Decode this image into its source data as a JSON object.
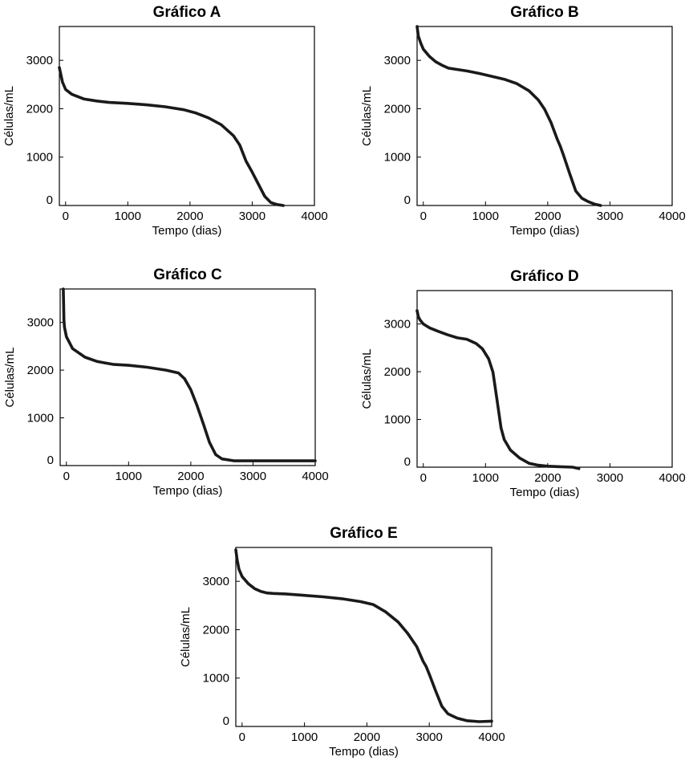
{
  "chart_data": [
    {
      "type": "line",
      "title": "Gráfico A",
      "xlabel": "Tempo (dias)",
      "ylabel": "Células/mL",
      "xlim": [
        -100,
        4000
      ],
      "ylim": [
        0,
        3700
      ],
      "xticks": [
        "0",
        "1000",
        "2000",
        "3000",
        "4000"
      ],
      "yticks": [
        "0",
        "1000",
        "2000",
        "3000"
      ],
      "grid": false,
      "series": [
        {
          "x": [
            -100,
            -50,
            0,
            100,
            300,
            500,
            700,
            1000,
            1300,
            1600,
            1900,
            2100,
            2300,
            2500,
            2700,
            2800,
            2900,
            3000,
            3100,
            3200,
            3300,
            3400,
            3500
          ],
          "y": [
            2850,
            2550,
            2400,
            2300,
            2200,
            2160,
            2130,
            2110,
            2080,
            2040,
            1980,
            1910,
            1810,
            1670,
            1440,
            1250,
            920,
            690,
            440,
            190,
            60,
            20,
            0
          ]
        }
      ]
    },
    {
      "type": "line",
      "title": "Gráfico B",
      "xlabel": "Tempo (dias)",
      "ylabel": "Células/mL",
      "xlim": [
        -100,
        4000
      ],
      "ylim": [
        0,
        3700
      ],
      "xticks": [
        "0",
        "1000",
        "2000",
        "3000",
        "4000"
      ],
      "yticks": [
        "0",
        "1000",
        "2000",
        "3000"
      ],
      "grid": false,
      "series": [
        {
          "x": [
            -100,
            -80,
            -40,
            0,
            100,
            200,
            300,
            400,
            550,
            700,
            900,
            1100,
            1300,
            1500,
            1700,
            1850,
            1950,
            2050,
            2150,
            2200,
            2250,
            2350,
            2450,
            2550,
            2650,
            2750,
            2850
          ],
          "y": [
            3700,
            3500,
            3350,
            3230,
            3080,
            2970,
            2900,
            2840,
            2810,
            2780,
            2730,
            2670,
            2610,
            2520,
            2370,
            2180,
            1990,
            1720,
            1380,
            1230,
            1050,
            670,
            300,
            150,
            80,
            30,
            0
          ]
        }
      ]
    },
    {
      "type": "line",
      "title": "Gráfico C",
      "xlabel": "Tempo (dias)",
      "ylabel": "Células/mL",
      "xlim": [
        -100,
        4000
      ],
      "ylim": [
        0,
        3700
      ],
      "xticks": [
        "0",
        "1000",
        "2000",
        "3000",
        "4000"
      ],
      "yticks": [
        "0",
        "1000",
        "2000",
        "3000"
      ],
      "grid": false,
      "series": [
        {
          "x": [
            -50,
            -45,
            -40,
            -30,
            0,
            100,
            300,
            500,
            750,
            1000,
            1300,
            1600,
            1800,
            1900,
            2000,
            2100,
            2200,
            2300,
            2400,
            2500,
            2700,
            3000,
            3500,
            4000
          ],
          "y": [
            3700,
            3400,
            3050,
            2900,
            2700,
            2450,
            2270,
            2180,
            2120,
            2100,
            2060,
            2000,
            1940,
            1820,
            1590,
            1260,
            880,
            490,
            230,
            140,
            100,
            100,
            100,
            100
          ]
        }
      ]
    },
    {
      "type": "line",
      "title": "Gráfico D",
      "xlabel": "Tempo (dias)",
      "ylabel": "Células/mL",
      "xlim": [
        -100,
        4000
      ],
      "ylim": [
        0,
        3700
      ],
      "xticks": [
        "0",
        "1000",
        "2000",
        "3000",
        "4000"
      ],
      "yticks": [
        "0",
        "1000",
        "2000",
        "3000"
      ],
      "grid": false,
      "series": [
        {
          "x": [
            -100,
            -80,
            -50,
            0,
            100,
            250,
            400,
            550,
            700,
            850,
            950,
            1050,
            1120,
            1180,
            1250,
            1300,
            1400,
            1550,
            1700,
            1850,
            2000,
            2200,
            2400,
            2500
          ],
          "y": [
            3280,
            3150,
            3080,
            3000,
            2920,
            2840,
            2770,
            2710,
            2680,
            2590,
            2480,
            2270,
            1990,
            1450,
            820,
            580,
            360,
            190,
            80,
            40,
            20,
            10,
            0,
            -30
          ]
        }
      ]
    },
    {
      "type": "line",
      "title": "Gráfico E",
      "xlabel": "Tempo (dias)",
      "ylabel": "Células/mL",
      "xlim": [
        -100,
        4000
      ],
      "ylim": [
        0,
        3700
      ],
      "xticks": [
        "0",
        "1000",
        "2000",
        "3000",
        "4000"
      ],
      "yticks": [
        "0",
        "1000",
        "2000",
        "3000"
      ],
      "grid": false,
      "series": [
        {
          "x": [
            -100,
            -80,
            -50,
            0,
            100,
            200,
            300,
            400,
            500,
            700,
            1000,
            1300,
            1600,
            1900,
            2100,
            2300,
            2500,
            2650,
            2800,
            2900,
            2950,
            3000,
            3100,
            3200,
            3300,
            3450,
            3600,
            3800,
            4000
          ],
          "y": [
            3650,
            3450,
            3250,
            3100,
            2950,
            2850,
            2790,
            2760,
            2750,
            2740,
            2710,
            2680,
            2640,
            2580,
            2520,
            2370,
            2160,
            1930,
            1650,
            1350,
            1240,
            1080,
            740,
            420,
            260,
            170,
            120,
            100,
            110
          ]
        }
      ]
    }
  ]
}
